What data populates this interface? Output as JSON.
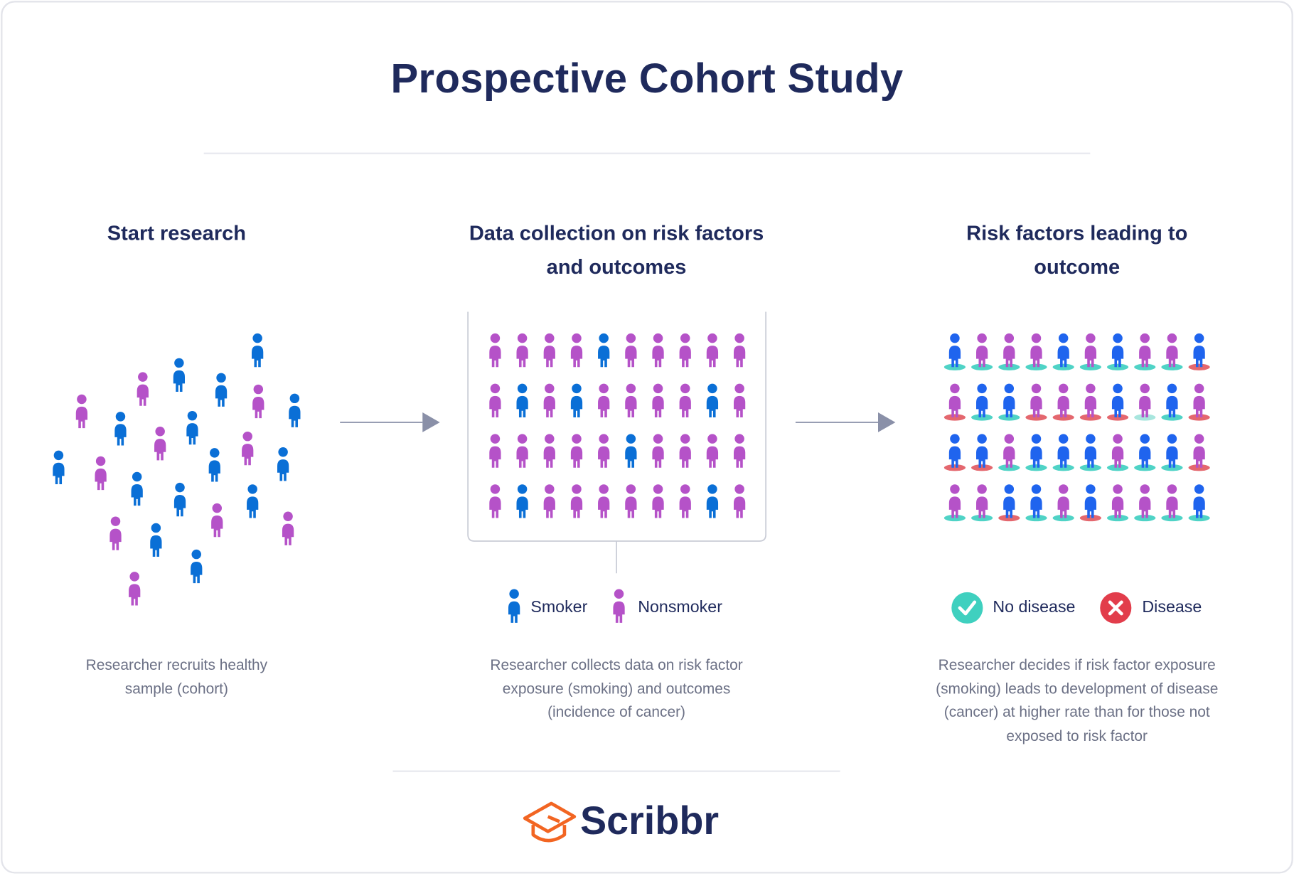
{
  "header": {
    "title": "Prospective Cohort Study"
  },
  "steps": [
    {
      "title": "Start research",
      "description": "Researcher recruits healthy sample (cohort)"
    },
    {
      "title": "Data collection on risk factors and outcomes",
      "description": "Researcher collects data on risk factor exposure (smoking) and outcomes (incidence of cancer)"
    },
    {
      "title": "Risk factors leading to outcome",
      "description": "Researcher decides if risk factor exposure (smoking) leads to development of disease (cancer) at higher rate than for those not exposed to risk factor"
    }
  ],
  "legend_exposure": [
    "Smoker",
    "Nonsmoker"
  ],
  "legend_outcome": [
    "No disease",
    "Disease"
  ],
  "logo": "Scribbr"
}
